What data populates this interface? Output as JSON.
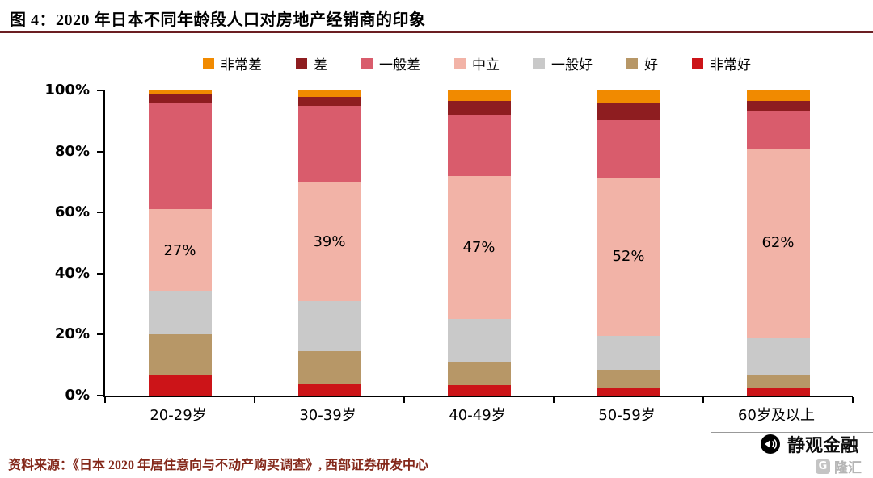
{
  "page": {
    "title": "图 4：2020 年日本不同年龄段人口对房地产经销商的印象",
    "source": "资料来源：《日本 2020 年居住意向与不动产购买调查》, 西部证券研发中心",
    "watermark": {
      "text": "静观金融",
      "icon": "megaphone-icon"
    },
    "logo": {
      "icon_letter": "G",
      "text": "隆汇"
    }
  },
  "chart_data": {
    "type": "bar",
    "stacked": true,
    "title": "2020 年日本不同年龄段人口对房地产经销商的印象",
    "categories": [
      "20-29岁",
      "30-39岁",
      "40-49岁",
      "50-59岁",
      "60岁及以上"
    ],
    "series": [
      {
        "name": "非常差",
        "color": "#F18A00",
        "values": [
          1,
          2,
          3.5,
          4,
          3.5
        ]
      },
      {
        "name": "差",
        "color": "#8E1D20",
        "values": [
          3,
          3,
          4.5,
          5.5,
          3.5
        ]
      },
      {
        "name": "一般差",
        "color": "#D95C6C",
        "values": [
          35,
          25,
          20,
          19,
          12
        ]
      },
      {
        "name": "中立",
        "color": "#F2B3A7",
        "values": [
          27,
          39,
          47,
          52,
          62
        ]
      },
      {
        "name": "一般好",
        "color": "#C9C9C9",
        "values": [
          14,
          16.5,
          14,
          11,
          12
        ]
      },
      {
        "name": "好",
        "color": "#B79767",
        "values": [
          13.5,
          10.5,
          7.5,
          6,
          4.5
        ]
      },
      {
        "name": "非常好",
        "color": "#CC1418",
        "values": [
          6.5,
          4,
          3.5,
          2.5,
          2.5
        ]
      }
    ],
    "data_labels": {
      "series": "中立",
      "series_index": 3,
      "values": [
        "27%",
        "39%",
        "47%",
        "52%",
        "62%"
      ]
    },
    "yticks": [
      "0%",
      "20%",
      "40%",
      "60%",
      "80%",
      "100%"
    ],
    "ylim": [
      0,
      100
    ],
    "legend_position": "top",
    "grid": false
  }
}
